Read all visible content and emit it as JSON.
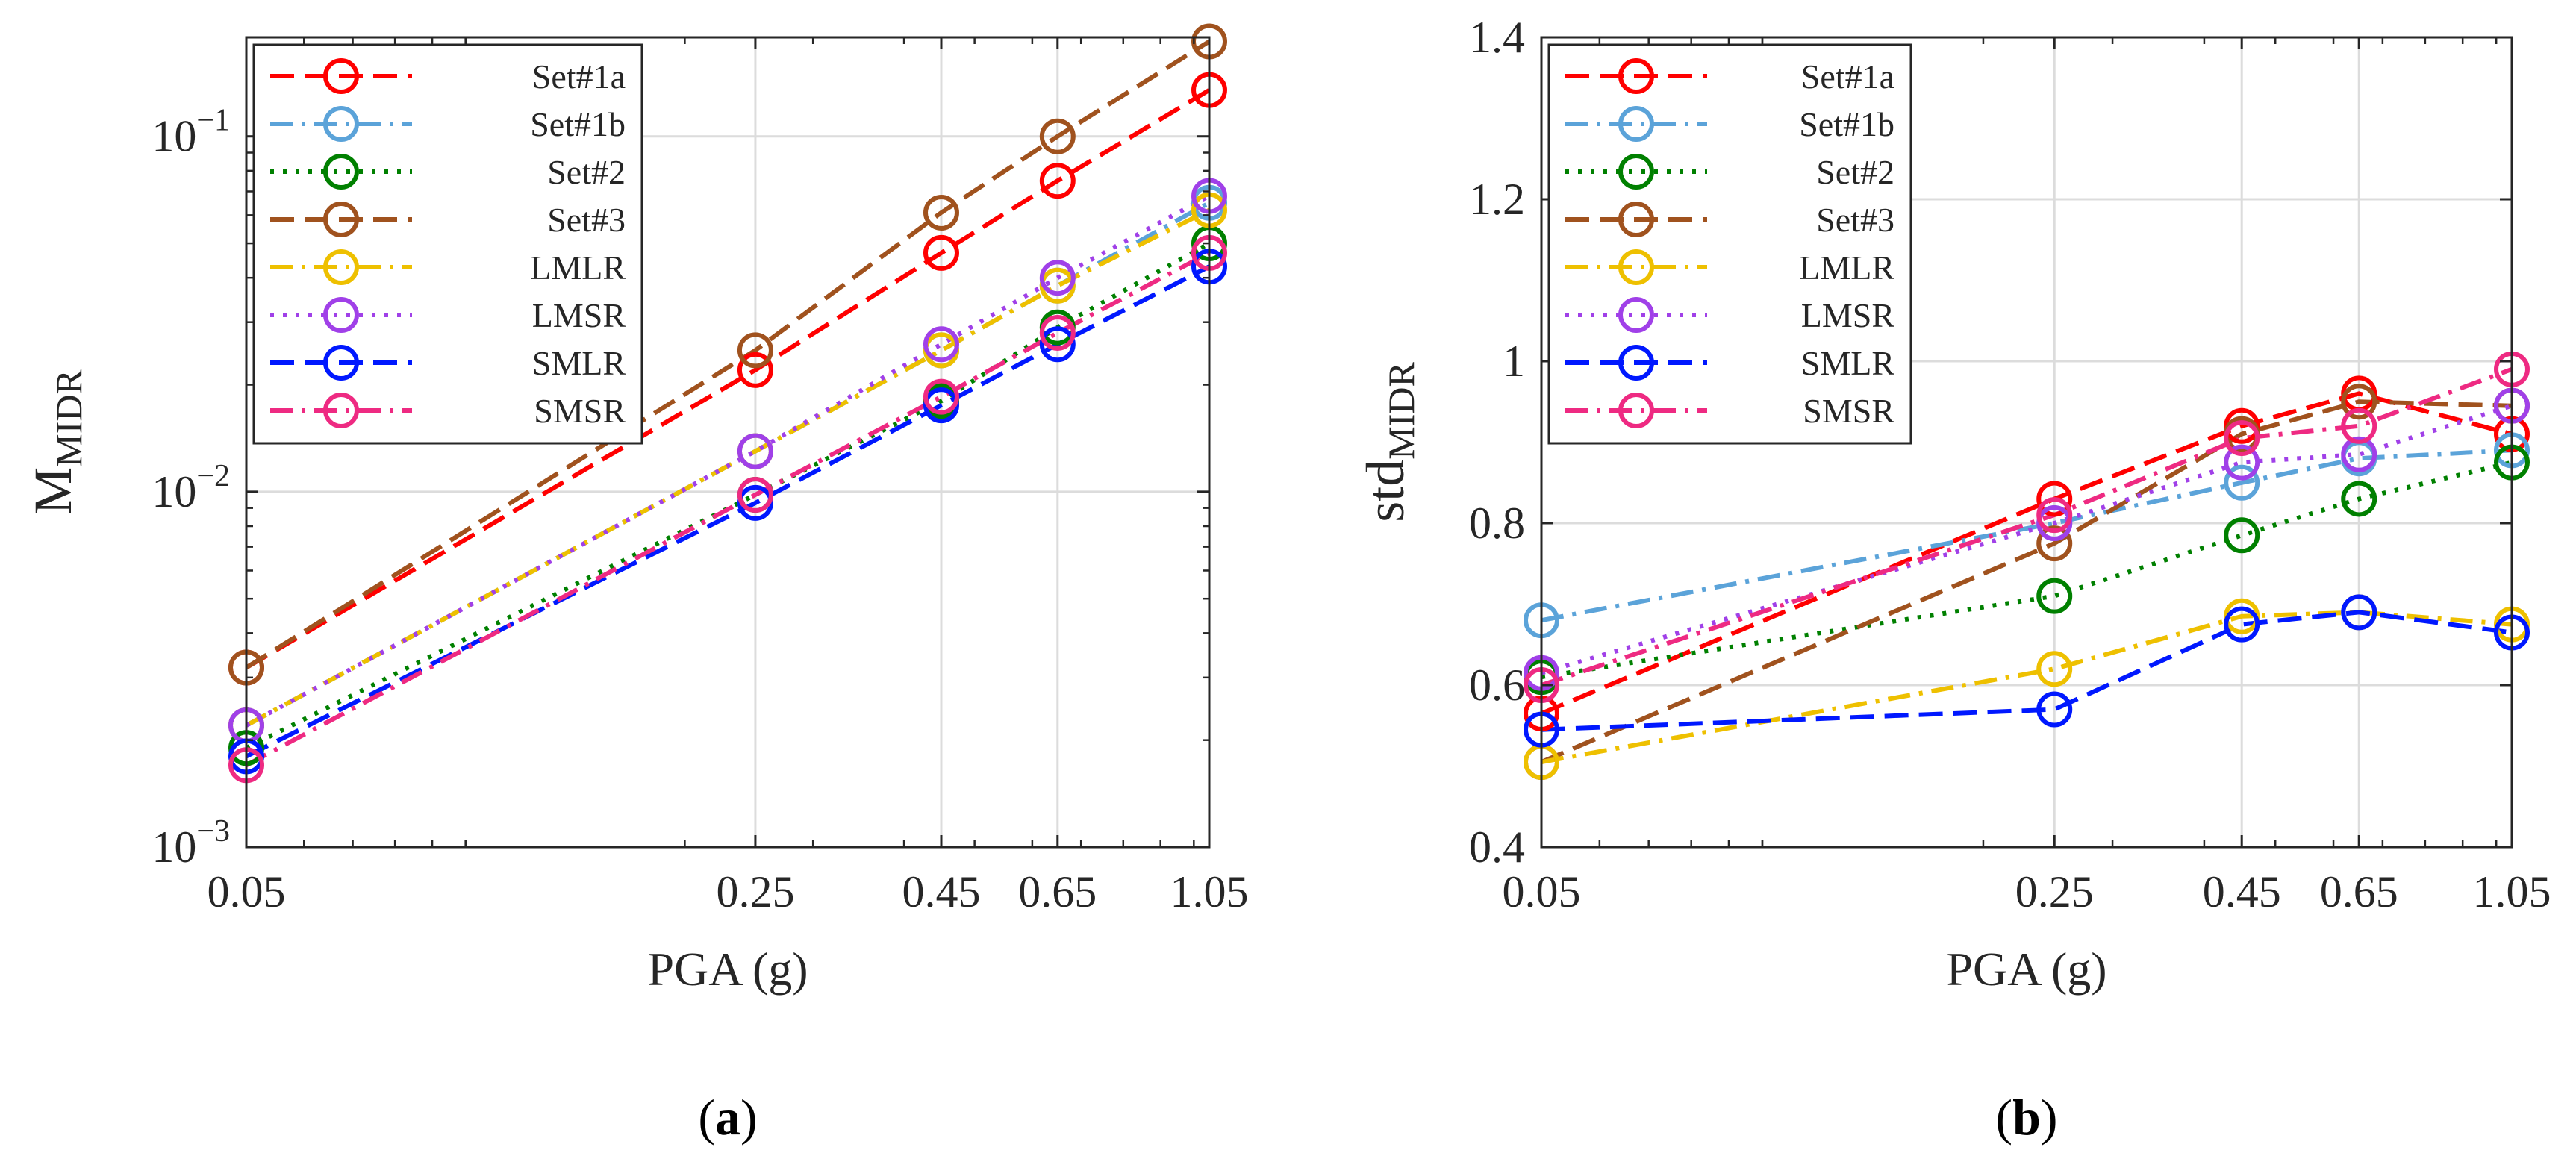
{
  "chart_data": [
    {
      "type": "line",
      "panel_label": "a",
      "xscale": "log",
      "yscale": "log",
      "xlabel": "PGA (g)",
      "ylabel_main": "M",
      "ylabel_sub": "MIDR",
      "x": [
        0.05,
        0.25,
        0.45,
        0.65,
        1.05
      ],
      "xticks": [
        0.05,
        0.25,
        0.45,
        0.65,
        1.05
      ],
      "xtick_labels": [
        "0.05",
        "0.25",
        "0.45",
        "0.65",
        "1.05"
      ],
      "xlim": [
        0.05,
        1.05
      ],
      "ylim": [
        0.001,
        0.19
      ],
      "yticks": [
        0.001,
        0.01,
        0.1
      ],
      "ytick_base": "10",
      "ytick_exponents": [
        "−3",
        "−2",
        "−1"
      ],
      "grid": true,
      "legend_position": "top-left",
      "series": [
        {
          "name": "Set#1a",
          "values": [
            0.0032,
            0.022,
            0.047,
            0.075,
            0.135
          ]
        },
        {
          "name": "Set#1b",
          "values": [
            0.0022,
            0.013,
            0.025,
            0.038,
            0.065
          ]
        },
        {
          "name": "Set#2",
          "values": [
            0.0019,
            0.0098,
            0.018,
            0.029,
            0.05
          ]
        },
        {
          "name": "Set#3",
          "values": [
            0.0032,
            0.025,
            0.061,
            0.1,
            0.185
          ]
        },
        {
          "name": "LMLR",
          "values": [
            0.0022,
            0.013,
            0.025,
            0.038,
            0.062
          ]
        },
        {
          "name": "LMSR",
          "values": [
            0.0022,
            0.013,
            0.026,
            0.04,
            0.068
          ]
        },
        {
          "name": "SMLR",
          "values": [
            0.0018,
            0.0093,
            0.0175,
            0.026,
            0.043
          ]
        },
        {
          "name": "SMSR",
          "values": [
            0.0017,
            0.0098,
            0.0185,
            0.028,
            0.047
          ]
        }
      ]
    },
    {
      "type": "line",
      "panel_label": "b",
      "xscale": "log",
      "yscale": "linear",
      "xlabel": "PGA (g)",
      "ylabel_main": "std",
      "ylabel_sub": "MIDR",
      "x": [
        0.05,
        0.25,
        0.45,
        0.65,
        1.05
      ],
      "xticks": [
        0.05,
        0.25,
        0.45,
        0.65,
        1.05
      ],
      "xtick_labels": [
        "0.05",
        "0.25",
        "0.45",
        "0.65",
        "1.05"
      ],
      "xlim": [
        0.05,
        1.05
      ],
      "ylim": [
        0.4,
        1.4
      ],
      "yticks": [
        0.4,
        0.6,
        0.8,
        1.0,
        1.2,
        1.4
      ],
      "ytick_labels": [
        "0.4",
        "0.6",
        "0.8",
        "1",
        "1.2",
        "1.4"
      ],
      "grid": true,
      "legend_position": "top-left",
      "series": [
        {
          "name": "Set#1a",
          "values": [
            0.565,
            0.83,
            0.92,
            0.96,
            0.91
          ]
        },
        {
          "name": "Set#1b",
          "values": [
            0.68,
            0.8,
            0.85,
            0.88,
            0.89
          ]
        },
        {
          "name": "Set#2",
          "values": [
            0.61,
            0.71,
            0.785,
            0.83,
            0.875
          ]
        },
        {
          "name": "Set#3",
          "values": [
            0.505,
            0.775,
            0.91,
            0.95,
            0.945
          ]
        },
        {
          "name": "LMLR",
          "values": [
            0.505,
            0.62,
            0.685,
            0.69,
            0.675
          ]
        },
        {
          "name": "LMSR",
          "values": [
            0.615,
            0.8,
            0.875,
            0.885,
            0.945
          ]
        },
        {
          "name": "SMLR",
          "values": [
            0.545,
            0.57,
            0.675,
            0.69,
            0.665
          ]
        },
        {
          "name": "SMSR",
          "values": [
            0.6,
            0.81,
            0.905,
            0.92,
            0.99
          ]
        }
      ]
    }
  ],
  "series_styles": [
    {
      "name": "Set#1a",
      "color": "#ff0000",
      "dash": "dash"
    },
    {
      "name": "Set#1b",
      "color": "#5ba3d9",
      "dash": "dashdot"
    },
    {
      "name": "Set#2",
      "color": "#008000",
      "dash": "dot"
    },
    {
      "name": "Set#3",
      "color": "#a0521e",
      "dash": "dash"
    },
    {
      "name": "LMLR",
      "color": "#eec000",
      "dash": "dashdot"
    },
    {
      "name": "LMSR",
      "color": "#a040e8",
      "dash": "dot"
    },
    {
      "name": "SMLR",
      "color": "#0018ff",
      "dash": "dash"
    },
    {
      "name": "SMSR",
      "color": "#ee2a82",
      "dash": "dashdot"
    }
  ]
}
